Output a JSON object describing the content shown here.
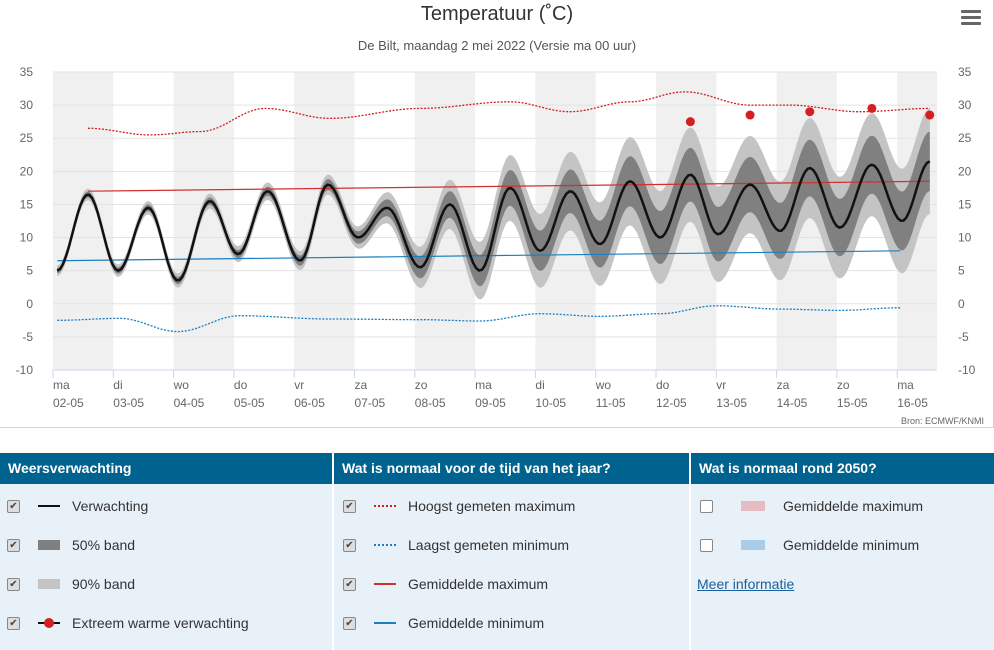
{
  "header": {
    "title": "Temperatuur (˚C)",
    "subtitle": "De Bilt, maandag 2 mei 2022 (Versie ma 00 uur)",
    "source": "Bron: ECMWF/KNMI"
  },
  "chart_data": {
    "type": "line",
    "title": "Temperatuur (˚C)",
    "ylabel": "°C",
    "ylim": [
      -10,
      35
    ],
    "yticks": [
      35,
      30,
      25,
      20,
      15,
      10,
      5,
      0,
      -5,
      -10
    ],
    "xlabels": [
      [
        "ma",
        "02-05"
      ],
      [
        "di",
        "03-05"
      ],
      [
        "wo",
        "04-05"
      ],
      [
        "do",
        "05-05"
      ],
      [
        "vr",
        "06-05"
      ],
      [
        "za",
        "07-05"
      ],
      [
        "zo",
        "08-05"
      ],
      [
        "ma",
        "09-05"
      ],
      [
        "di",
        "10-05"
      ],
      [
        "wo",
        "11-05"
      ],
      [
        "do",
        "12-05"
      ],
      [
        "vr",
        "13-05"
      ],
      [
        "za",
        "14-05"
      ],
      [
        "zo",
        "15-05"
      ],
      [
        "ma",
        "16-05"
      ]
    ],
    "x_unit": "days since 02-05 00h",
    "forecast_extremes": [
      [
        0.07,
        5
      ],
      [
        0.58,
        16.5
      ],
      [
        1.08,
        5
      ],
      [
        1.58,
        14.5
      ],
      [
        2.07,
        3.5
      ],
      [
        2.6,
        15.5
      ],
      [
        3.07,
        7.5
      ],
      [
        3.56,
        17
      ],
      [
        4.1,
        6.5
      ],
      [
        4.56,
        18
      ],
      [
        5.06,
        10
      ],
      [
        5.54,
        14.5
      ],
      [
        6.09,
        5.5
      ],
      [
        6.58,
        15
      ],
      [
        7.08,
        5
      ],
      [
        7.58,
        17.5
      ],
      [
        8.08,
        8
      ],
      [
        8.58,
        17
      ],
      [
        9.07,
        9
      ],
      [
        9.57,
        18.5
      ],
      [
        10.07,
        10
      ],
      [
        10.57,
        19.5
      ],
      [
        11.03,
        10.5
      ],
      [
        11.56,
        18
      ],
      [
        12.06,
        11
      ],
      [
        12.55,
        20.5
      ],
      [
        13.05,
        11.5
      ],
      [
        13.58,
        21
      ],
      [
        14.08,
        12.5
      ],
      [
        14.54,
        21.5
      ]
    ],
    "band90_halfwidth": [
      [
        0,
        0.8
      ],
      [
        3,
        1.2
      ],
      [
        5,
        1.6
      ],
      [
        6,
        3
      ],
      [
        8,
        5.5
      ],
      [
        10,
        7
      ],
      [
        14.6,
        8
      ]
    ],
    "band50_halfwidth": [
      [
        0,
        0.4
      ],
      [
        3,
        0.6
      ],
      [
        5,
        0.9
      ],
      [
        6,
        1.6
      ],
      [
        8,
        3
      ],
      [
        10,
        4
      ],
      [
        14.6,
        4.5
      ]
    ],
    "highest_max": [
      [
        0.58,
        26.5
      ],
      [
        1.61,
        25.5
      ],
      [
        2.44,
        26
      ],
      [
        3.52,
        29.5
      ],
      [
        4.59,
        28
      ],
      [
        6.09,
        29.5
      ],
      [
        7.58,
        30.5
      ],
      [
        8.57,
        29
      ],
      [
        9.57,
        30.5
      ],
      [
        10.48,
        32
      ],
      [
        11.56,
        30
      ],
      [
        12.22,
        30
      ],
      [
        13.38,
        29
      ],
      [
        14.54,
        29.5
      ]
    ],
    "lowest_min": [
      [
        0.07,
        -2.5
      ],
      [
        1.11,
        -2.2
      ],
      [
        2.07,
        -4.2
      ],
      [
        3.1,
        -1.8
      ],
      [
        4.59,
        -2.3
      ],
      [
        6.09,
        -2.4
      ],
      [
        7.08,
        -2.6
      ],
      [
        8.08,
        -1.5
      ],
      [
        9.07,
        -1.9
      ],
      [
        10.07,
        -1.5
      ],
      [
        11,
        -0.3
      ],
      [
        12.06,
        -0.8
      ],
      [
        13.05,
        -1
      ],
      [
        14.05,
        -0.6
      ]
    ],
    "mean_max": [
      [
        0.58,
        17
      ],
      [
        14.54,
        18.5
      ]
    ],
    "mean_min": [
      [
        0.07,
        6.5
      ],
      [
        14.05,
        8
      ]
    ],
    "extreme_warm": [
      [
        10.57,
        27.5
      ],
      [
        11.56,
        28.5
      ],
      [
        12.55,
        29
      ],
      [
        13.58,
        29.5
      ],
      [
        14.54,
        28.5
      ]
    ],
    "colors": {
      "forecast": "#111111",
      "band50": "#808080",
      "band90": "#c4c4c4",
      "highest": "#d02020",
      "lowest": "#1a7fc0",
      "mean_max": "#d03030",
      "mean_min": "#1a7fc0",
      "extreme": "#d42020"
    }
  },
  "legend": {
    "col1": {
      "title": "Weersverwachting",
      "items": [
        "Verwachting",
        "50% band",
        "90% band",
        "Extreem warme verwachting"
      ]
    },
    "col2": {
      "title": "Wat is normaal voor de tijd van het jaar?",
      "items": [
        "Hoogst gemeten maximum",
        "Laagst gemeten minimum",
        "Gemiddelde maximum",
        "Gemiddelde minimum"
      ]
    },
    "col3": {
      "title": "Wat is normaal rond 2050?",
      "items": [
        "Gemiddelde maximum",
        "Gemiddelde minimum"
      ],
      "link": "Meer informatie"
    }
  }
}
